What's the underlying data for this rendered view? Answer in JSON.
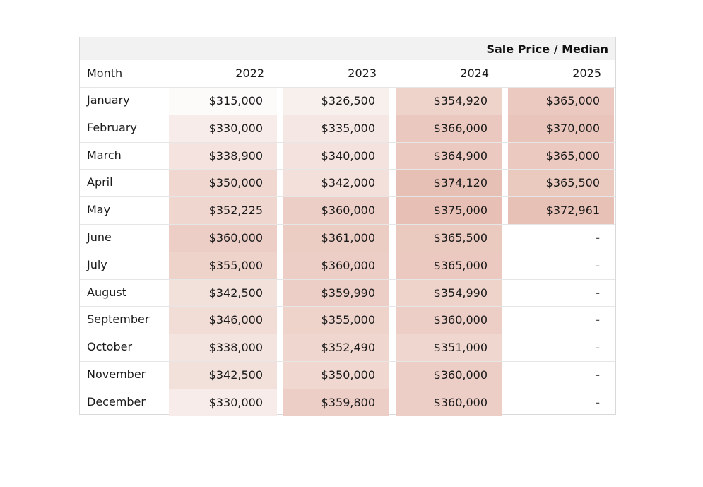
{
  "chart_data": {
    "type": "table",
    "title": "Sale Price / Median",
    "columns": [
      "Month",
      "2022",
      "2023",
      "2024",
      "2025"
    ],
    "rows": [
      {
        "month": "January",
        "values": [
          "$315,000",
          "$326,500",
          "$354,920",
          "$365,000"
        ]
      },
      {
        "month": "February",
        "values": [
          "$330,000",
          "$335,000",
          "$366,000",
          "$370,000"
        ]
      },
      {
        "month": "March",
        "values": [
          "$338,900",
          "$340,000",
          "$364,900",
          "$365,000"
        ]
      },
      {
        "month": "April",
        "values": [
          "$350,000",
          "$342,000",
          "$374,120",
          "$365,500"
        ]
      },
      {
        "month": "May",
        "values": [
          "$352,225",
          "$360,000",
          "$375,000",
          "$372,961"
        ]
      },
      {
        "month": "June",
        "values": [
          "$360,000",
          "$361,000",
          "$365,500",
          "-"
        ]
      },
      {
        "month": "July",
        "values": [
          "$355,000",
          "$360,000",
          "$365,000",
          "-"
        ]
      },
      {
        "month": "August",
        "values": [
          "$342,500",
          "$359,990",
          "$354,990",
          "-"
        ]
      },
      {
        "month": "September",
        "values": [
          "$346,000",
          "$355,000",
          "$360,000",
          "-"
        ]
      },
      {
        "month": "October",
        "values": [
          "$338,000",
          "$352,490",
          "$351,000",
          "-"
        ]
      },
      {
        "month": "November",
        "values": [
          "$342,500",
          "$350,000",
          "$360,000",
          "-"
        ]
      },
      {
        "month": "December",
        "values": [
          "$330,000",
          "$359,800",
          "$360,000",
          "-"
        ]
      }
    ],
    "heat_color_low": "#fcfbfa",
    "heat_color_high": "#e7bfb4",
    "value_range": [
      315000,
      375000
    ]
  }
}
